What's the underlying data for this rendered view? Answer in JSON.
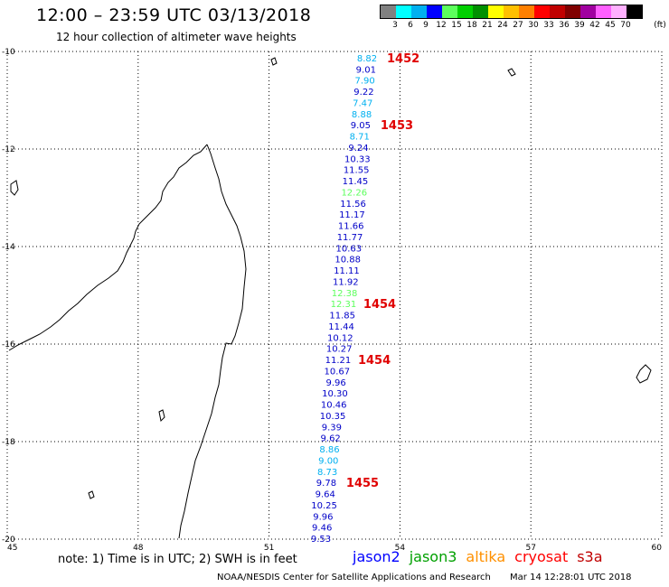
{
  "header": {
    "title": "12:00 – 23:59 UTC 03/13/2018",
    "subtitle": "12 hour collection of altimeter wave heights"
  },
  "color_scale": {
    "unit": "(ft)",
    "bins": [
      {
        "label": "3",
        "color": "#808080"
      },
      {
        "label": "6",
        "color": "#00ffff"
      },
      {
        "label": "9",
        "color": "#00b0f0"
      },
      {
        "label": "12",
        "color": "#0000ff"
      },
      {
        "label": "15",
        "color": "#5cff5c"
      },
      {
        "label": "18",
        "color": "#00d000"
      },
      {
        "label": "21",
        "color": "#009000"
      },
      {
        "label": "24",
        "color": "#ffff00"
      },
      {
        "label": "27",
        "color": "#ffc000"
      },
      {
        "label": "30",
        "color": "#ff8000"
      },
      {
        "label": "33",
        "color": "#ff0000"
      },
      {
        "label": "36",
        "color": "#c00000"
      },
      {
        "label": "39",
        "color": "#800000"
      },
      {
        "label": "42",
        "color": "#a000a0"
      },
      {
        "label": "45",
        "color": "#ff60ff"
      },
      {
        "label": "70",
        "color": "#ffb0ff"
      },
      {
        "label": "",
        "color": "#000000"
      }
    ]
  },
  "axes": {
    "lat_ticks": [
      "-10",
      "-12",
      "-14",
      "-16",
      "-18",
      "-20"
    ],
    "lon_ticks": [
      "45",
      "48",
      "51",
      "54",
      "57",
      "60"
    ]
  },
  "track": {
    "readings": [
      {
        "v": "8.82",
        "color": "#00b0f0"
      },
      {
        "v": "9.01",
        "color": "#0000c8"
      },
      {
        "v": "7.90",
        "color": "#00b0f0"
      },
      {
        "v": "9.22",
        "color": "#0000c8"
      },
      {
        "v": "7.47",
        "color": "#00b0f0"
      },
      {
        "v": "8.88",
        "color": "#00b0f0"
      },
      {
        "v": "9.05",
        "color": "#0000c8"
      },
      {
        "v": "8.71",
        "color": "#00b0f0"
      },
      {
        "v": "9.24",
        "color": "#0000c8"
      },
      {
        "v": "10.33",
        "color": "#0000c8"
      },
      {
        "v": "11.55",
        "color": "#0000c8"
      },
      {
        "v": "11.45",
        "color": "#0000c8"
      },
      {
        "v": "12.26",
        "color": "#5cff5c"
      },
      {
        "v": "11.56",
        "color": "#0000c8"
      },
      {
        "v": "11.17",
        "color": "#0000c8"
      },
      {
        "v": "11.66",
        "color": "#0000c8"
      },
      {
        "v": "11.77",
        "color": "#0000c8"
      },
      {
        "v": "10.63",
        "color": "#0000c8"
      },
      {
        "v": "10.88",
        "color": "#0000c8"
      },
      {
        "v": "11.11",
        "color": "#0000c8"
      },
      {
        "v": "11.92",
        "color": "#0000c8"
      },
      {
        "v": "12.38",
        "color": "#5cff5c"
      },
      {
        "v": "12.31",
        "color": "#5cff5c"
      },
      {
        "v": "11.85",
        "color": "#0000c8"
      },
      {
        "v": "11.44",
        "color": "#0000c8"
      },
      {
        "v": "10.12",
        "color": "#0000c8"
      },
      {
        "v": "10.27",
        "color": "#0000c8"
      },
      {
        "v": "11.21",
        "color": "#0000c8"
      },
      {
        "v": "10.67",
        "color": "#0000c8"
      },
      {
        "v": "9.96",
        "color": "#0000c8"
      },
      {
        "v": "10.30",
        "color": "#0000c8"
      },
      {
        "v": "10.46",
        "color": "#0000c8"
      },
      {
        "v": "10.35",
        "color": "#0000c8"
      },
      {
        "v": "9.39",
        "color": "#0000c8"
      },
      {
        "v": "9.62",
        "color": "#0000c8"
      },
      {
        "v": "8.86",
        "color": "#00b0f0"
      },
      {
        "v": "9.00",
        "color": "#00b0f0"
      },
      {
        "v": "8.73",
        "color": "#00b0f0"
      },
      {
        "v": "9.78",
        "color": "#0000c8"
      },
      {
        "v": "9.64",
        "color": "#0000c8"
      },
      {
        "v": "10.25",
        "color": "#0000c8"
      },
      {
        "v": "9.96",
        "color": "#0000c8"
      },
      {
        "v": "9.46",
        "color": "#0000c8"
      },
      {
        "v": "9.53",
        "color": "#0000c8"
      }
    ],
    "passes": [
      {
        "time": "1452",
        "at": 0
      },
      {
        "time": "1453",
        "at": 6
      },
      {
        "time": "1454",
        "at": 22
      },
      {
        "time": "1454",
        "at": 27
      },
      {
        "time": "1455",
        "at": 38
      }
    ]
  },
  "note": "note: 1) Time is in UTC; 2) SWH is in feet",
  "satellites": [
    {
      "name": "jason2",
      "color": "#0000ff"
    },
    {
      "name": "jason3",
      "color": "#00a000"
    },
    {
      "name": "altika",
      "color": "#ff9000"
    },
    {
      "name": "cryosat",
      "color": "#ff0000"
    },
    {
      "name": "s3a",
      "color": "#c00000"
    }
  ],
  "footer": {
    "credit": "NOAA/NESDIS Center for Satellite Applications and Research",
    "timestamp": "Mar 14 12:28:01 UTC 2018"
  }
}
